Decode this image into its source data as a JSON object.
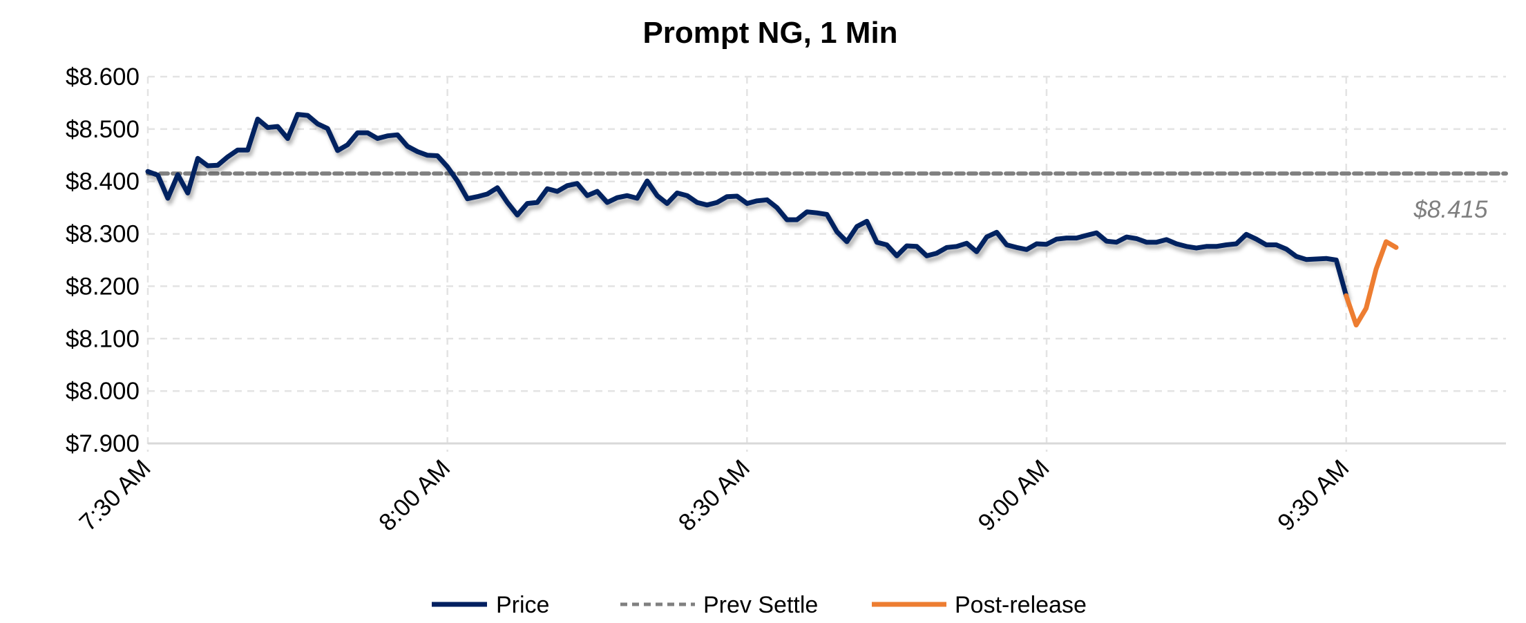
{
  "chart_data": {
    "type": "line",
    "title": "Prompt NG, 1 Min",
    "xlabel": "",
    "ylabel": "",
    "ylim": [
      7.9,
      8.6
    ],
    "y_ticks": [
      8.6,
      8.5,
      8.4,
      8.3,
      8.2,
      8.1,
      8.0,
      7.9
    ],
    "y_tick_labels": [
      "$8.600",
      "$8.500",
      "$8.400",
      "$8.300",
      "$8.200",
      "$8.100",
      "$8.000",
      "$7.900"
    ],
    "x_range": [
      "7:30",
      "9:46"
    ],
    "x_ticks": [
      "7:30",
      "8:00",
      "8:30",
      "9:00",
      "9:30"
    ],
    "x_tick_labels": [
      "7:30 AM",
      "8:00 AM",
      "8:30 AM",
      "9:00 AM",
      "9:30 AM"
    ],
    "grid": true,
    "legend_position": "bottom",
    "colors": {
      "price": "#002060",
      "prev_settle": "#808080",
      "post_release": "#ED7D31"
    },
    "series": [
      {
        "name": "Price",
        "style": "solid",
        "x": [
          "7:30",
          "7:31",
          "7:32",
          "7:33",
          "7:34",
          "7:35",
          "7:36",
          "7:37",
          "7:38",
          "7:39",
          "7:40",
          "7:41",
          "7:42",
          "7:43",
          "7:44",
          "7:45",
          "7:46",
          "7:47",
          "7:48",
          "7:49",
          "7:50",
          "7:51",
          "7:52",
          "7:53",
          "7:54",
          "7:55",
          "7:56",
          "7:57",
          "7:58",
          "7:59",
          "8:00",
          "8:01",
          "8:02",
          "8:03",
          "8:04",
          "8:05",
          "8:06",
          "8:07",
          "8:08",
          "8:09",
          "8:10",
          "8:11",
          "8:12",
          "8:13",
          "8:14",
          "8:15",
          "8:16",
          "8:17",
          "8:18",
          "8:19",
          "8:20",
          "8:21",
          "8:22",
          "8:23",
          "8:24",
          "8:25",
          "8:26",
          "8:27",
          "8:28",
          "8:29",
          "8:30",
          "8:31",
          "8:32",
          "8:33",
          "8:34",
          "8:35",
          "8:36",
          "8:37",
          "8:38",
          "8:39",
          "8:40",
          "8:41",
          "8:42",
          "8:43",
          "8:44",
          "8:45",
          "8:46",
          "8:47",
          "8:48",
          "8:49",
          "8:50",
          "8:51",
          "8:52",
          "8:53",
          "8:54",
          "8:55",
          "8:56",
          "8:57",
          "8:58",
          "8:59",
          "9:00",
          "9:01",
          "9:02",
          "9:03",
          "9:04",
          "9:05",
          "9:06",
          "9:07",
          "9:08",
          "9:09",
          "9:10",
          "9:11",
          "9:12",
          "9:13",
          "9:14",
          "9:15",
          "9:16",
          "9:17",
          "9:18",
          "9:19",
          "9:20",
          "9:21",
          "9:22",
          "9:23",
          "9:24",
          "9:25",
          "9:26",
          "9:27",
          "9:28",
          "9:29",
          "9:30"
        ],
        "values": [
          8.419,
          8.412,
          8.368,
          8.413,
          8.378,
          8.444,
          8.43,
          8.431,
          8.447,
          8.46,
          8.46,
          8.519,
          8.503,
          8.505,
          8.482,
          8.528,
          8.526,
          8.51,
          8.501,
          8.459,
          8.47,
          8.493,
          8.493,
          8.482,
          8.487,
          8.489,
          8.467,
          8.457,
          8.45,
          8.449,
          8.428,
          8.401,
          8.367,
          8.371,
          8.376,
          8.388,
          8.36,
          8.336,
          8.358,
          8.36,
          8.386,
          8.381,
          8.392,
          8.396,
          8.373,
          8.381,
          8.36,
          8.369,
          8.373,
          8.368,
          8.401,
          8.373,
          8.358,
          8.378,
          8.373,
          8.36,
          8.355,
          8.36,
          8.371,
          8.372,
          8.358,
          8.363,
          8.365,
          8.35,
          8.327,
          8.327,
          8.342,
          8.34,
          8.337,
          8.304,
          8.285,
          8.314,
          8.324,
          8.284,
          8.279,
          8.258,
          8.277,
          8.276,
          8.258,
          8.263,
          8.274,
          8.276,
          8.282,
          8.266,
          8.294,
          8.303,
          8.279,
          8.274,
          8.27,
          8.281,
          8.28,
          8.29,
          8.292,
          8.292,
          8.297,
          8.302,
          8.286,
          8.284,
          8.294,
          8.291,
          8.284,
          8.284,
          8.289,
          8.281,
          8.276,
          8.273,
          8.276,
          8.276,
          8.279,
          8.281,
          8.299,
          8.29,
          8.279,
          8.279,
          8.271,
          8.257,
          8.251,
          8.252,
          8.253,
          8.25,
          8.182
        ]
      },
      {
        "name": "Prev Settle",
        "style": "dashed",
        "x": [
          "7:30",
          "9:46"
        ],
        "values": [
          8.415,
          8.415
        ]
      },
      {
        "name": "Post-release",
        "style": "solid",
        "x": [
          "9:30",
          "9:31",
          "9:32",
          "9:33",
          "9:34",
          "9:35"
        ],
        "values": [
          8.182,
          8.126,
          8.158,
          8.233,
          8.285,
          8.274
        ]
      }
    ],
    "annotations": [
      {
        "text": "$8.415"
      }
    ]
  }
}
